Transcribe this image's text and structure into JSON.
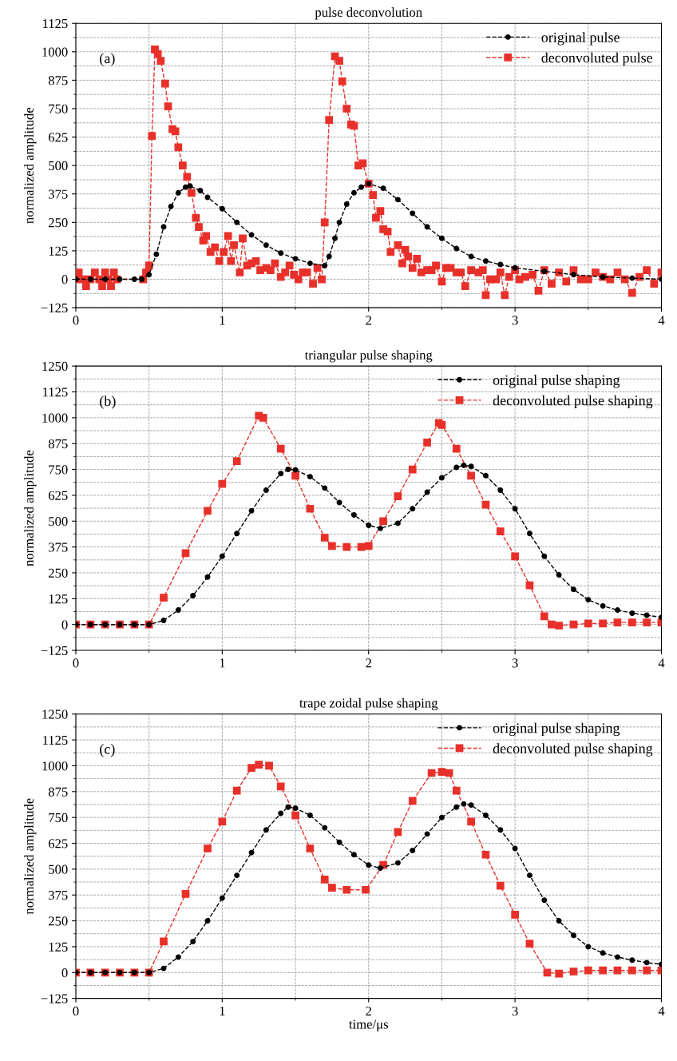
{
  "chart_data": [
    {
      "type": "line",
      "title": "pulse deconvolution",
      "ylabel": "normalized amplitude",
      "annotations": [
        "(a)"
      ],
      "xlim": [
        0,
        4
      ],
      "xticks": [
        0,
        1,
        2,
        3,
        4
      ],
      "ylim": [
        -125,
        1125
      ],
      "yticks": [
        -125,
        0,
        125,
        250,
        375,
        500,
        625,
        750,
        875,
        1000,
        1125
      ],
      "grid": true,
      "legend": "top right",
      "line_style": "dashed",
      "series": [
        {
          "name": "original pulse",
          "color": "#000000",
          "marker": "circle",
          "x": [
            0,
            0.1,
            0.2,
            0.3,
            0.4,
            0.45,
            0.5,
            0.55,
            0.6,
            0.65,
            0.7,
            0.75,
            0.78,
            0.85,
            0.9,
            1.0,
            1.1,
            1.2,
            1.3,
            1.4,
            1.5,
            1.6,
            1.7,
            1.73,
            1.77,
            1.8,
            1.85,
            1.9,
            1.95,
            2.0,
            2.1,
            2.2,
            2.3,
            2.4,
            2.5,
            2.6,
            2.7,
            2.8,
            2.9,
            3.0,
            3.2,
            3.4,
            3.6,
            3.8,
            4.0
          ],
          "values": [
            0,
            0,
            0,
            0,
            0,
            0,
            20,
            110,
            230,
            320,
            380,
            405,
            410,
            390,
            360,
            310,
            250,
            195,
            150,
            115,
            90,
            70,
            60,
            100,
            180,
            250,
            330,
            380,
            405,
            420,
            400,
            350,
            290,
            230,
            180,
            135,
            100,
            80,
            65,
            50,
            35,
            20,
            10,
            5,
            0
          ]
        },
        {
          "name": "deconvoluted pulse",
          "color": "#e8302a",
          "marker": "square",
          "x": [
            0,
            0.02,
            0.05,
            0.07,
            0.1,
            0.13,
            0.16,
            0.18,
            0.2,
            0.22,
            0.24,
            0.26,
            0.28,
            0.46,
            0.48,
            0.5,
            0.52,
            0.54,
            0.56,
            0.58,
            0.61,
            0.63,
            0.66,
            0.68,
            0.7,
            0.73,
            0.76,
            0.79,
            0.82,
            0.84,
            0.87,
            0.89,
            0.92,
            0.95,
            0.98,
            1.01,
            1.04,
            1.06,
            1.08,
            1.12,
            1.14,
            1.17,
            1.2,
            1.23,
            1.26,
            1.3,
            1.33,
            1.36,
            1.4,
            1.43,
            1.46,
            1.49,
            1.52,
            1.55,
            1.58,
            1.62,
            1.65,
            1.68,
            1.7,
            1.73,
            1.77,
            1.8,
            1.82,
            1.85,
            1.88,
            1.9,
            1.93,
            1.96,
            2.0,
            2.03,
            2.05,
            2.08,
            2.1,
            2.13,
            2.15,
            2.2,
            2.23,
            2.25,
            2.27,
            2.3,
            2.33,
            2.36,
            2.4,
            2.43,
            2.46,
            2.5,
            2.53,
            2.56,
            2.6,
            2.63,
            2.66,
            2.7,
            2.75,
            2.78,
            2.8,
            2.83,
            2.87,
            2.9,
            2.93,
            2.96,
            3.0,
            3.03,
            3.07,
            3.12,
            3.16,
            3.2,
            3.25,
            3.3,
            3.35,
            3.4,
            3.45,
            3.5,
            3.55,
            3.6,
            3.65,
            3.7,
            3.75,
            3.8,
            3.85,
            3.9,
            3.95,
            4.0
          ],
          "values": [
            0,
            30,
            0,
            -30,
            0,
            30,
            0,
            -30,
            30,
            0,
            -30,
            30,
            0,
            0,
            30,
            60,
            630,
            1010,
            990,
            960,
            860,
            760,
            660,
            650,
            580,
            500,
            450,
            380,
            270,
            230,
            170,
            190,
            120,
            140,
            80,
            120,
            190,
            80,
            150,
            30,
            180,
            60,
            70,
            80,
            40,
            50,
            40,
            70,
            10,
            30,
            60,
            20,
            0,
            30,
            30,
            -20,
            50,
            0,
            250,
            700,
            980,
            960,
            870,
            750,
            680,
            675,
            500,
            510,
            420,
            370,
            270,
            300,
            220,
            210,
            120,
            150,
            70,
            130,
            100,
            50,
            90,
            30,
            40,
            40,
            60,
            -10,
            50,
            50,
            30,
            30,
            -30,
            40,
            30,
            40,
            -70,
            0,
            0,
            30,
            -70,
            10,
            40,
            0,
            10,
            20,
            -50,
            40,
            -20,
            30,
            -10,
            40,
            0,
            0,
            30,
            10,
            0,
            30,
            0,
            -60,
            10,
            40,
            -20,
            30
          ]
        }
      ]
    },
    {
      "type": "line",
      "title": "triangular pulse shaping",
      "ylabel": "normalized amplitude",
      "annotations": [
        "(b)"
      ],
      "xlim": [
        0,
        4
      ],
      "xticks": [
        0,
        1,
        2,
        3,
        4
      ],
      "ylim": [
        -125,
        1250
      ],
      "yticks": [
        -125,
        0,
        125,
        250,
        375,
        500,
        625,
        750,
        875,
        1000,
        1125,
        1250
      ],
      "grid": true,
      "legend": "top right",
      "line_style": "dashed",
      "series": [
        {
          "name": "original pulse shaping",
          "color": "#000000",
          "marker": "circle",
          "x": [
            0,
            0.1,
            0.2,
            0.3,
            0.4,
            0.5,
            0.6,
            0.7,
            0.8,
            0.9,
            1.0,
            1.1,
            1.2,
            1.3,
            1.4,
            1.45,
            1.5,
            1.6,
            1.7,
            1.8,
            1.9,
            2.0,
            2.08,
            2.2,
            2.3,
            2.4,
            2.5,
            2.6,
            2.65,
            2.7,
            2.8,
            2.9,
            3.0,
            3.1,
            3.2,
            3.3,
            3.4,
            3.5,
            3.6,
            3.7,
            3.8,
            3.9,
            4.0
          ],
          "values": [
            0,
            0,
            0,
            0,
            0,
            0,
            20,
            70,
            140,
            230,
            330,
            440,
            550,
            650,
            730,
            750,
            748,
            715,
            660,
            590,
            530,
            480,
            465,
            490,
            560,
            640,
            710,
            760,
            770,
            765,
            720,
            650,
            560,
            440,
            330,
            240,
            170,
            120,
            90,
            70,
            55,
            45,
            35
          ]
        },
        {
          "name": "deconvoluted pulse shaping",
          "color": "#e8302a",
          "marker": "square",
          "x": [
            0,
            0.1,
            0.2,
            0.3,
            0.4,
            0.5,
            0.6,
            0.75,
            0.9,
            1.0,
            1.1,
            1.25,
            1.28,
            1.4,
            1.5,
            1.6,
            1.7,
            1.75,
            1.85,
            1.95,
            2.0,
            2.1,
            2.2,
            2.3,
            2.4,
            2.48,
            2.5,
            2.6,
            2.7,
            2.8,
            2.9,
            3.0,
            3.1,
            3.2,
            3.25,
            3.3,
            3.4,
            3.5,
            3.6,
            3.7,
            3.8,
            3.9,
            4.0
          ],
          "values": [
            0,
            0,
            0,
            0,
            0,
            0,
            130,
            345,
            550,
            680,
            790,
            1010,
            1000,
            850,
            720,
            560,
            420,
            380,
            375,
            375,
            380,
            500,
            620,
            750,
            880,
            975,
            965,
            850,
            720,
            580,
            450,
            330,
            190,
            40,
            0,
            -5,
            0,
            5,
            5,
            10,
            10,
            10,
            10
          ]
        }
      ]
    },
    {
      "type": "line",
      "title": "trape zoidal pulse shaping",
      "xlabel": "time/μs",
      "ylabel": "normalized amplitude",
      "annotations": [
        "(c)"
      ],
      "xlim": [
        0,
        4
      ],
      "xticks": [
        0,
        1,
        2,
        3,
        4
      ],
      "ylim": [
        -125,
        1250
      ],
      "yticks": [
        -125,
        0,
        125,
        250,
        375,
        500,
        625,
        750,
        875,
        1000,
        1125,
        1250
      ],
      "grid": true,
      "legend": "top right",
      "line_style": "dashed",
      "series": [
        {
          "name": "original pulse shaping",
          "color": "#000000",
          "marker": "circle",
          "x": [
            0,
            0.1,
            0.2,
            0.3,
            0.4,
            0.5,
            0.6,
            0.7,
            0.8,
            0.9,
            1.0,
            1.1,
            1.2,
            1.3,
            1.4,
            1.45,
            1.5,
            1.6,
            1.7,
            1.8,
            1.9,
            2.0,
            2.08,
            2.2,
            2.3,
            2.4,
            2.5,
            2.6,
            2.65,
            2.7,
            2.8,
            2.9,
            3.0,
            3.1,
            3.2,
            3.3,
            3.4,
            3.5,
            3.6,
            3.7,
            3.8,
            3.9,
            4.0
          ],
          "values": [
            0,
            0,
            0,
            0,
            0,
            0,
            20,
            75,
            150,
            250,
            360,
            470,
            580,
            690,
            770,
            800,
            795,
            760,
            700,
            630,
            570,
            520,
            505,
            530,
            590,
            670,
            750,
            800,
            815,
            810,
            760,
            690,
            600,
            470,
            350,
            250,
            180,
            125,
            95,
            75,
            60,
            48,
            40
          ]
        },
        {
          "name": "deconvoluted pulse shaping",
          "color": "#e8302a",
          "marker": "square",
          "x": [
            0,
            0.1,
            0.2,
            0.3,
            0.4,
            0.5,
            0.6,
            0.75,
            0.9,
            1.0,
            1.1,
            1.2,
            1.25,
            1.32,
            1.4,
            1.5,
            1.6,
            1.7,
            1.75,
            1.85,
            1.98,
            2.1,
            2.2,
            2.3,
            2.43,
            2.5,
            2.55,
            2.6,
            2.7,
            2.8,
            2.9,
            3.0,
            3.1,
            3.22,
            3.3,
            3.4,
            3.5,
            3.6,
            3.7,
            3.8,
            3.9,
            4.0
          ],
          "values": [
            0,
            0,
            0,
            0,
            0,
            0,
            150,
            380,
            600,
            730,
            880,
            990,
            1005,
            1000,
            900,
            760,
            600,
            450,
            410,
            400,
            400,
            520,
            680,
            830,
            965,
            970,
            965,
            880,
            730,
            570,
            420,
            280,
            140,
            0,
            -5,
            5,
            10,
            10,
            10,
            10,
            10,
            10
          ]
        }
      ]
    }
  ]
}
